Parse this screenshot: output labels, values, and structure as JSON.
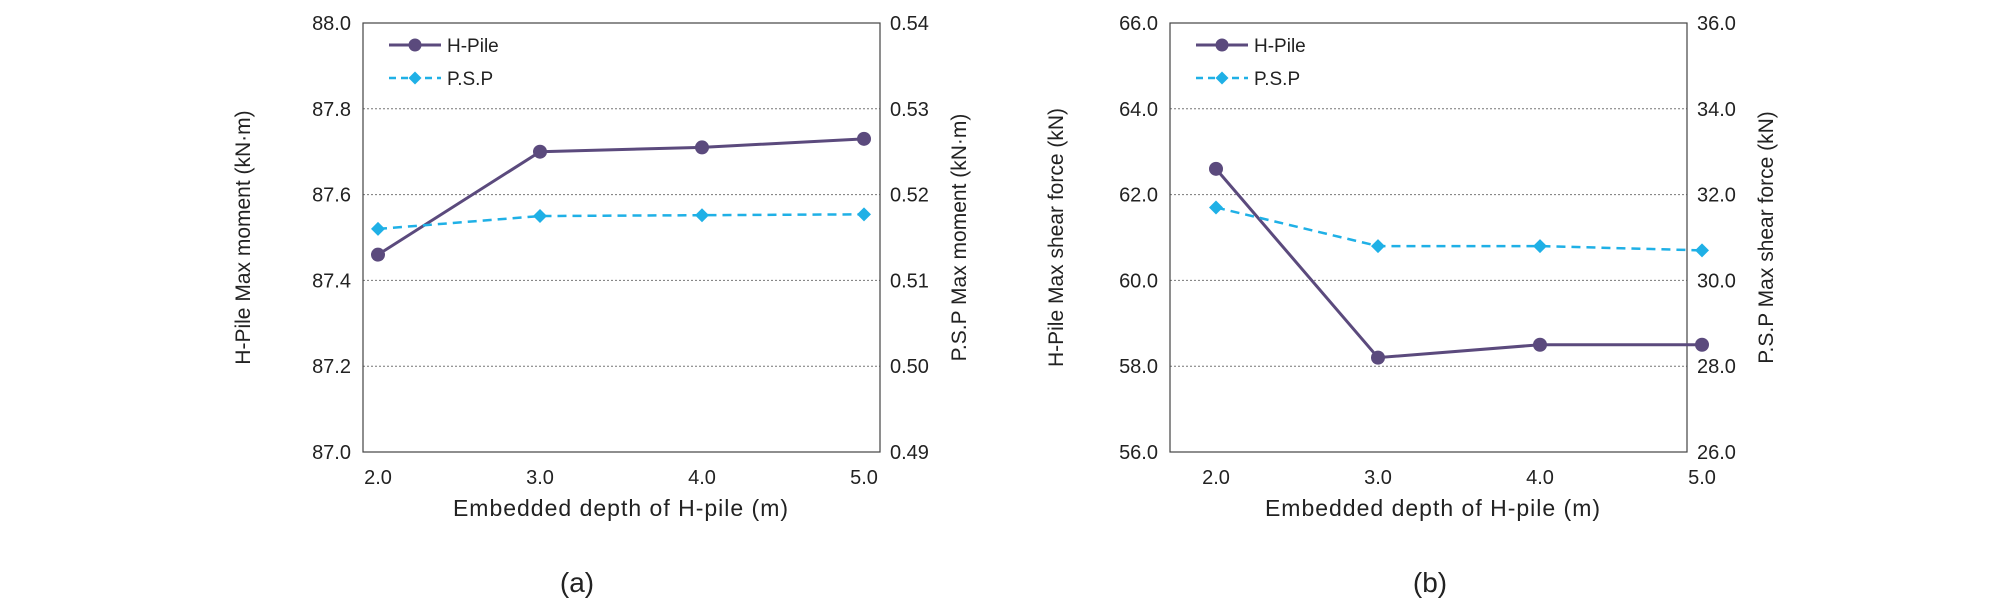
{
  "colors": {
    "h_pile": "#5b4a7d",
    "psp": "#1fb0e6",
    "grid": "#777777",
    "axis": "#444444",
    "text": "#222222"
  },
  "chart_data": [
    {
      "type": "line",
      "panel_label": "(a)",
      "xlabel": "Embedded depth of H-pile (m)",
      "ylabel": "H-Pile Max moment (kN·m)",
      "y2label": "P.S.P Max  moment (kN·m)",
      "categories": [
        "2.0",
        "3.0",
        "4.0",
        "5.0"
      ],
      "ylim": [
        87.0,
        88.0
      ],
      "y_ticks": [
        "87.0",
        "87.2",
        "87.4",
        "87.6",
        "87.8",
        "88.0"
      ],
      "y2lim": [
        0.49,
        0.54
      ],
      "y2_ticks": [
        "0.49",
        "0.50",
        "0.51",
        "0.52",
        "0.53",
        "0.54"
      ],
      "legend_position": "top-left",
      "series": [
        {
          "name": "H-Pile",
          "axis": "left",
          "marker": "circle",
          "line": "solid",
          "values": [
            87.46,
            87.7,
            87.71,
            87.73
          ]
        },
        {
          "name": "P.S.P",
          "axis": "right",
          "marker": "diamond",
          "line": "dashed",
          "values": [
            0.516,
            0.5175,
            0.5176,
            0.5177
          ]
        }
      ]
    },
    {
      "type": "line",
      "panel_label": "(b)",
      "xlabel": "Embedded depth of H-pile (m)",
      "ylabel": "H-Pile Max shear force (kN)",
      "y2label": "P.S.P Max shear force (kN)",
      "categories": [
        "2.0",
        "3.0",
        "4.0",
        "5.0"
      ],
      "ylim": [
        56.0,
        66.0
      ],
      "y_ticks": [
        "56.0",
        "58.0",
        "60.0",
        "62.0",
        "64.0",
        "66.0"
      ],
      "y2lim": [
        26.0,
        36.0
      ],
      "y2_ticks": [
        "26.0",
        "28.0",
        "30.0",
        "32.0",
        "34.0",
        "36.0"
      ],
      "legend_position": "top-left",
      "series": [
        {
          "name": "H-Pile",
          "axis": "left",
          "marker": "circle",
          "line": "solid",
          "values": [
            62.6,
            58.2,
            58.5,
            58.5
          ]
        },
        {
          "name": "P.S.P",
          "axis": "right",
          "marker": "diamond",
          "line": "dashed",
          "values": [
            31.7,
            30.8,
            30.8,
            30.7
          ]
        }
      ]
    }
  ]
}
